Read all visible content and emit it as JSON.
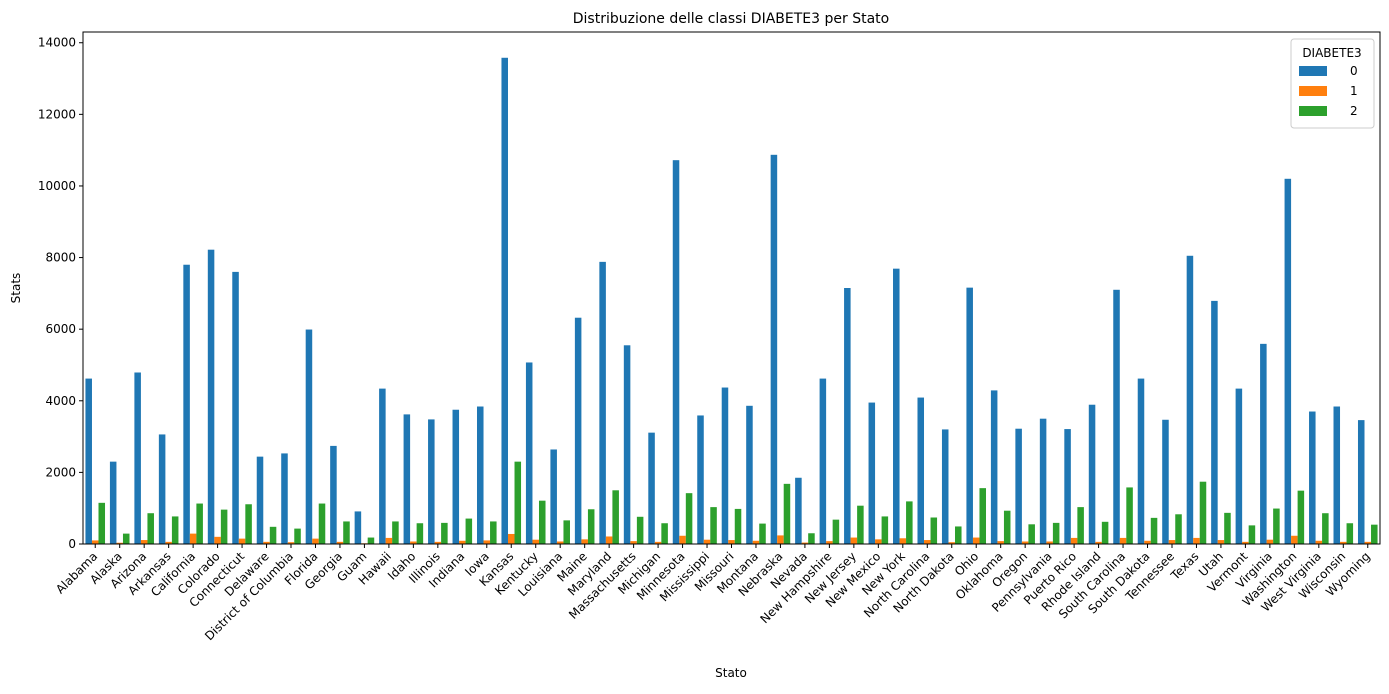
{
  "chart_data": {
    "type": "bar",
    "title": "Distribuzione delle classi DIABETE3 per Stato",
    "xlabel": "Stato",
    "ylabel": "Stats",
    "ylim": [
      0,
      14300
    ],
    "yticks": [
      0,
      2000,
      4000,
      6000,
      8000,
      10000,
      12000,
      14000
    ],
    "yticklabels": [
      "0",
      "2000",
      "4000",
      "6000",
      "8000",
      "10000",
      "12000",
      "14000"
    ],
    "grid": false,
    "legend": {
      "title": "DIABETE3",
      "position": "top-right"
    },
    "categories": [
      "Alabama",
      "Alaska",
      "Arizona",
      "Arkansas",
      "California",
      "Colorado",
      "Connecticut",
      "Delaware",
      "District of Columbia",
      "Florida",
      "Georgia",
      "Guam",
      "Hawaii",
      "Idaho",
      "Illinois",
      "Indiana",
      "Iowa",
      "Kansas",
      "Kentucky",
      "Louisiana",
      "Maine",
      "Maryland",
      "Massachusetts",
      "Michigan",
      "Minnesota",
      "Mississippi",
      "Missouri",
      "Montana",
      "Nebraska",
      "Nevada",
      "New Hampshire",
      "New Jersey",
      "New Mexico",
      "New York",
      "North Carolina",
      "North Dakota",
      "Ohio",
      "Oklahoma",
      "Oregon",
      "Pennsylvania",
      "Puerto Rico",
      "Rhode Island",
      "South Carolina",
      "South Dakota",
      "Tennessee",
      "Texas",
      "Utah",
      "Vermont",
      "Virginia",
      "Washington",
      "West Virginia",
      "Wisconsin",
      "Wyoming"
    ],
    "series": [
      {
        "name": "0",
        "color": "#1f77b4",
        "values": [
          4620,
          2300,
          4790,
          3060,
          7800,
          8220,
          7600,
          2440,
          2530,
          5990,
          2740,
          910,
          4340,
          3620,
          3480,
          3750,
          3840,
          13580,
          5070,
          2640,
          6320,
          7880,
          5550,
          3110,
          10720,
          3590,
          4370,
          3860,
          10870,
          1850,
          4620,
          7150,
          3950,
          7690,
          4090,
          3200,
          7160,
          4290,
          3220,
          3500,
          3210,
          3890,
          7100,
          4620,
          3470,
          8050,
          6790,
          4340,
          5590,
          10200,
          3700,
          3840,
          3460
        ]
      },
      {
        "name": "1",
        "color": "#ff7f0e",
        "values": [
          100,
          35,
          110,
          60,
          290,
          200,
          150,
          60,
          50,
          150,
          60,
          20,
          170,
          70,
          60,
          90,
          100,
          280,
          120,
          70,
          130,
          210,
          80,
          60,
          230,
          120,
          110,
          90,
          240,
          40,
          80,
          180,
          130,
          160,
          110,
          50,
          180,
          80,
          70,
          70,
          170,
          60,
          170,
          90,
          110,
          170,
          110,
          60,
          120,
          230,
          90,
          60,
          60
        ]
      },
      {
        "name": "2",
        "color": "#2ca02c",
        "values": [
          1150,
          290,
          860,
          770,
          1130,
          960,
          1110,
          480,
          430,
          1130,
          630,
          180,
          630,
          580,
          590,
          710,
          630,
          2300,
          1210,
          660,
          970,
          1500,
          760,
          580,
          1420,
          1030,
          980,
          570,
          1680,
          300,
          680,
          1070,
          770,
          1190,
          740,
          490,
          1560,
          930,
          550,
          590,
          1030,
          620,
          1580,
          730,
          830,
          1740,
          870,
          520,
          990,
          1490,
          860,
          580,
          540
        ]
      }
    ]
  }
}
